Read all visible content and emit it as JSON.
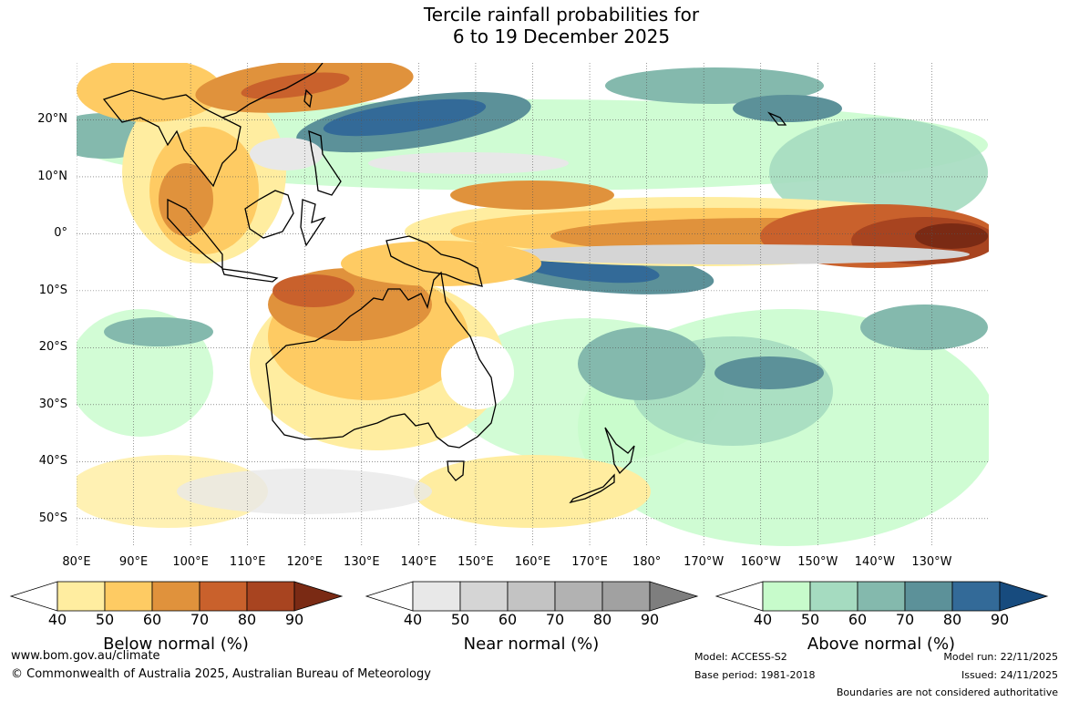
{
  "title": {
    "line1": "Tercile rainfall probabilities for",
    "line2": "6 to 19 December 2025"
  },
  "map": {
    "lat_labels": [
      "20°N",
      "10°N",
      "0°",
      "10°S",
      "20°S",
      "30°S",
      "40°S",
      "50°S"
    ],
    "lon_labels": [
      "80°E",
      "90°E",
      "100°E",
      "110°E",
      "120°E",
      "130°E",
      "140°E",
      "150°E",
      "160°E",
      "170°E",
      "180°",
      "170°W",
      "160°W",
      "150°W",
      "140°W",
      "130°W"
    ],
    "lat_range": [
      -55,
      30
    ],
    "lon_range": [
      80,
      240
    ]
  },
  "colorbars": [
    {
      "title": "Below normal (%)",
      "ticks": [
        "40",
        "50",
        "60",
        "70",
        "80",
        "90"
      ],
      "colors": [
        "#ffeda0",
        "#fecb63",
        "#e0923c",
        "#c9612c",
        "#a84420",
        "#7a2a14"
      ]
    },
    {
      "title": "Near normal (%)",
      "ticks": [
        "40",
        "50",
        "60",
        "70",
        "80",
        "90"
      ],
      "colors": [
        "#e8e8e8",
        "#d5d5d5",
        "#c3c3c3",
        "#b2b2b2",
        "#a1a1a1",
        "#7e7e7e"
      ]
    },
    {
      "title": "Above normal (%)",
      "ticks": [
        "40",
        "50",
        "60",
        "70",
        "80",
        "90"
      ],
      "colors": [
        "#c7fbcb",
        "#a5dbc0",
        "#84b9ad",
        "#5c9199",
        "#336a98",
        "#174b7e"
      ]
    }
  ],
  "footer": {
    "website": "www.bom.gov.au/climate",
    "copyright": "© Commonwealth of Australia 2025, Australian Bureau of Meteorology",
    "model": "Model: ACCESS-S2",
    "base_period": "Base period: 1981-2018",
    "model_run": "Model run: 22/11/2025",
    "issued": "Issued: 24/11/2025",
    "disclaimer": "Boundaries are not considered authoritative"
  }
}
